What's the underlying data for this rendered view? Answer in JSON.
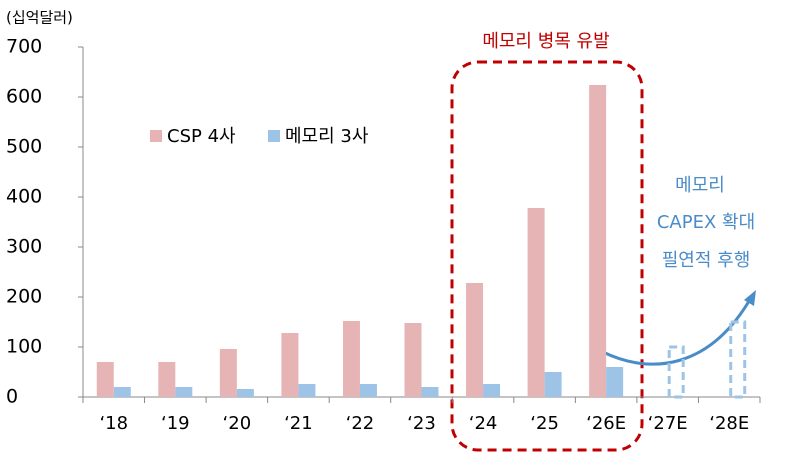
{
  "chart_data": {
    "type": "bar",
    "unit_label": "(십억달러)",
    "categories": [
      "‘18",
      "‘19",
      "‘20",
      "‘21",
      "‘22",
      "‘23",
      "‘24",
      "‘25",
      "‘26E",
      "‘27E",
      "‘28E"
    ],
    "series": [
      {
        "name": "CSP 4사",
        "color": "#e6b4b4",
        "values": [
          70,
          70,
          96,
          128,
          152,
          148,
          228,
          378,
          624,
          null,
          null
        ]
      },
      {
        "name": "메모리 3사",
        "color": "#9dc3e6",
        "values": [
          20,
          20,
          16,
          26,
          26,
          20,
          26,
          50,
          60,
          100,
          150
        ],
        "styles": [
          "solid",
          "solid",
          "solid",
          "solid",
          "solid",
          "solid",
          "solid",
          "solid",
          "solid",
          "dashed",
          "dashed"
        ]
      }
    ],
    "ylim": [
      0,
      700
    ],
    "yticks": [
      0,
      100,
      200,
      300,
      400,
      500,
      600,
      700
    ],
    "grid": false,
    "annotations": [
      {
        "text": "메모리 병목 유발",
        "color": "#c00000"
      },
      {
        "text": "메모리",
        "color": "#4a8cc8"
      },
      {
        "text": "CAPEX 확대",
        "color": "#4a8cc8"
      },
      {
        "text": "필연적 후행",
        "color": "#4a8cc8"
      }
    ]
  }
}
